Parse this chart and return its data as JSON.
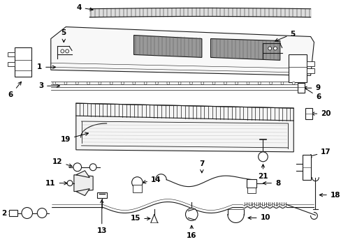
{
  "bg_color": "#ffffff",
  "lc": "#1a1a1a",
  "lw": 0.8,
  "fs": 7.5,
  "fig_w": 4.89,
  "fig_h": 3.6,
  "dpi": 100,
  "xlim": [
    0,
    489
  ],
  "ylim": [
    0,
    360
  ]
}
